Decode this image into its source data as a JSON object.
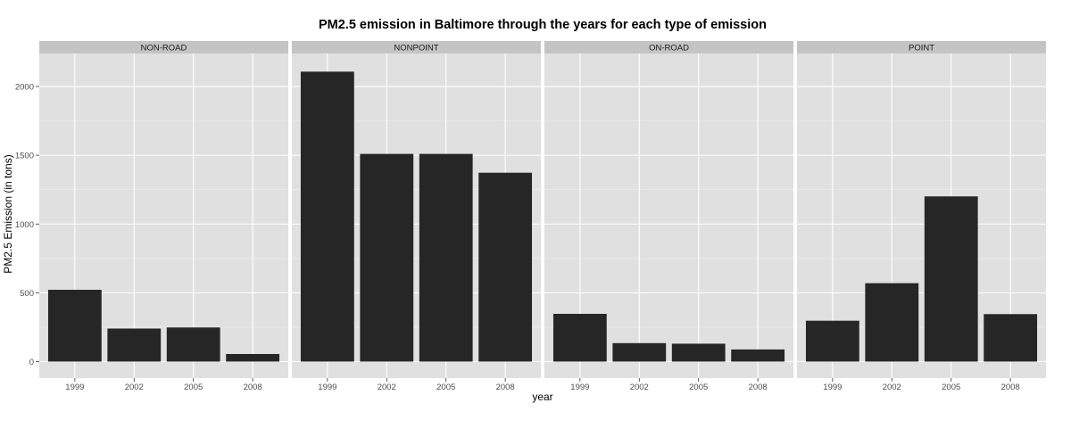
{
  "chart_data": {
    "type": "bar",
    "title": "PM2.5 emission in Baltimore through the years for each type of emission",
    "xlabel": "year",
    "ylabel": "PM2.5 Emission (in tons)",
    "categories": [
      "1999",
      "2002",
      "2005",
      "2008"
    ],
    "ylim": [
      -120,
      2240
    ],
    "yticks": [
      0,
      500,
      1000,
      1500,
      2000
    ],
    "grid": true,
    "legend": "none",
    "bar_color": "#262626",
    "panel_bg": "#e0e0e0",
    "strip_bg": "#c4c4c4",
    "facets": [
      {
        "name": "NON-ROAD",
        "values": [
          522,
          240,
          248,
          55
        ]
      },
      {
        "name": "NONPOINT",
        "values": [
          2108,
          1510,
          1510,
          1373
        ]
      },
      {
        "name": "ON-ROAD",
        "values": [
          347,
          134,
          130,
          88
        ]
      },
      {
        "name": "POINT",
        "values": [
          297,
          570,
          1201,
          345
        ]
      }
    ]
  }
}
